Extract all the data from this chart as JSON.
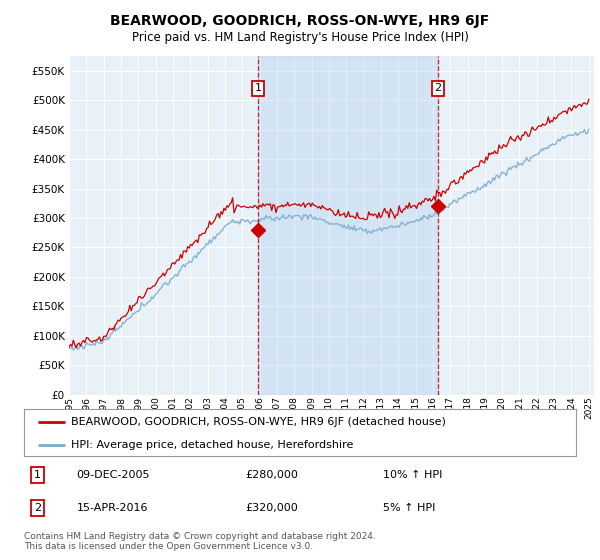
{
  "title": "BEARWOOD, GOODRICH, ROSS-ON-WYE, HR9 6JF",
  "subtitle": "Price paid vs. HM Land Registry's House Price Index (HPI)",
  "ylim": [
    0,
    575000
  ],
  "yticks": [
    0,
    50000,
    100000,
    150000,
    200000,
    250000,
    300000,
    350000,
    400000,
    450000,
    500000,
    550000
  ],
  "background_color": "#ffffff",
  "plot_bg_color": "#e8f0f8",
  "plot_bg_color2": "#ccddf0",
  "grid_color": "#ffffff",
  "red_line_color": "#cc0000",
  "blue_line_color": "#7aadcf",
  "vline_color": "#cc0000",
  "marker1_x": 2005.92,
  "marker1_y": 280000,
  "marker2_x": 2016.29,
  "marker2_y": 320000,
  "legend_red_label": "BEARWOOD, GOODRICH, ROSS-ON-WYE, HR9 6JF (detached house)",
  "legend_blue_label": "HPI: Average price, detached house, Herefordshire",
  "annotation1_num": "1",
  "annotation1_date": "09-DEC-2005",
  "annotation1_price": "£280,000",
  "annotation1_hpi": "10% ↑ HPI",
  "annotation2_num": "2",
  "annotation2_date": "15-APR-2016",
  "annotation2_price": "£320,000",
  "annotation2_hpi": "5% ↑ HPI",
  "footer": "Contains HM Land Registry data © Crown copyright and database right 2024.\nThis data is licensed under the Open Government Licence v3.0.",
  "xmin": 1995,
  "xmax": 2025.3
}
